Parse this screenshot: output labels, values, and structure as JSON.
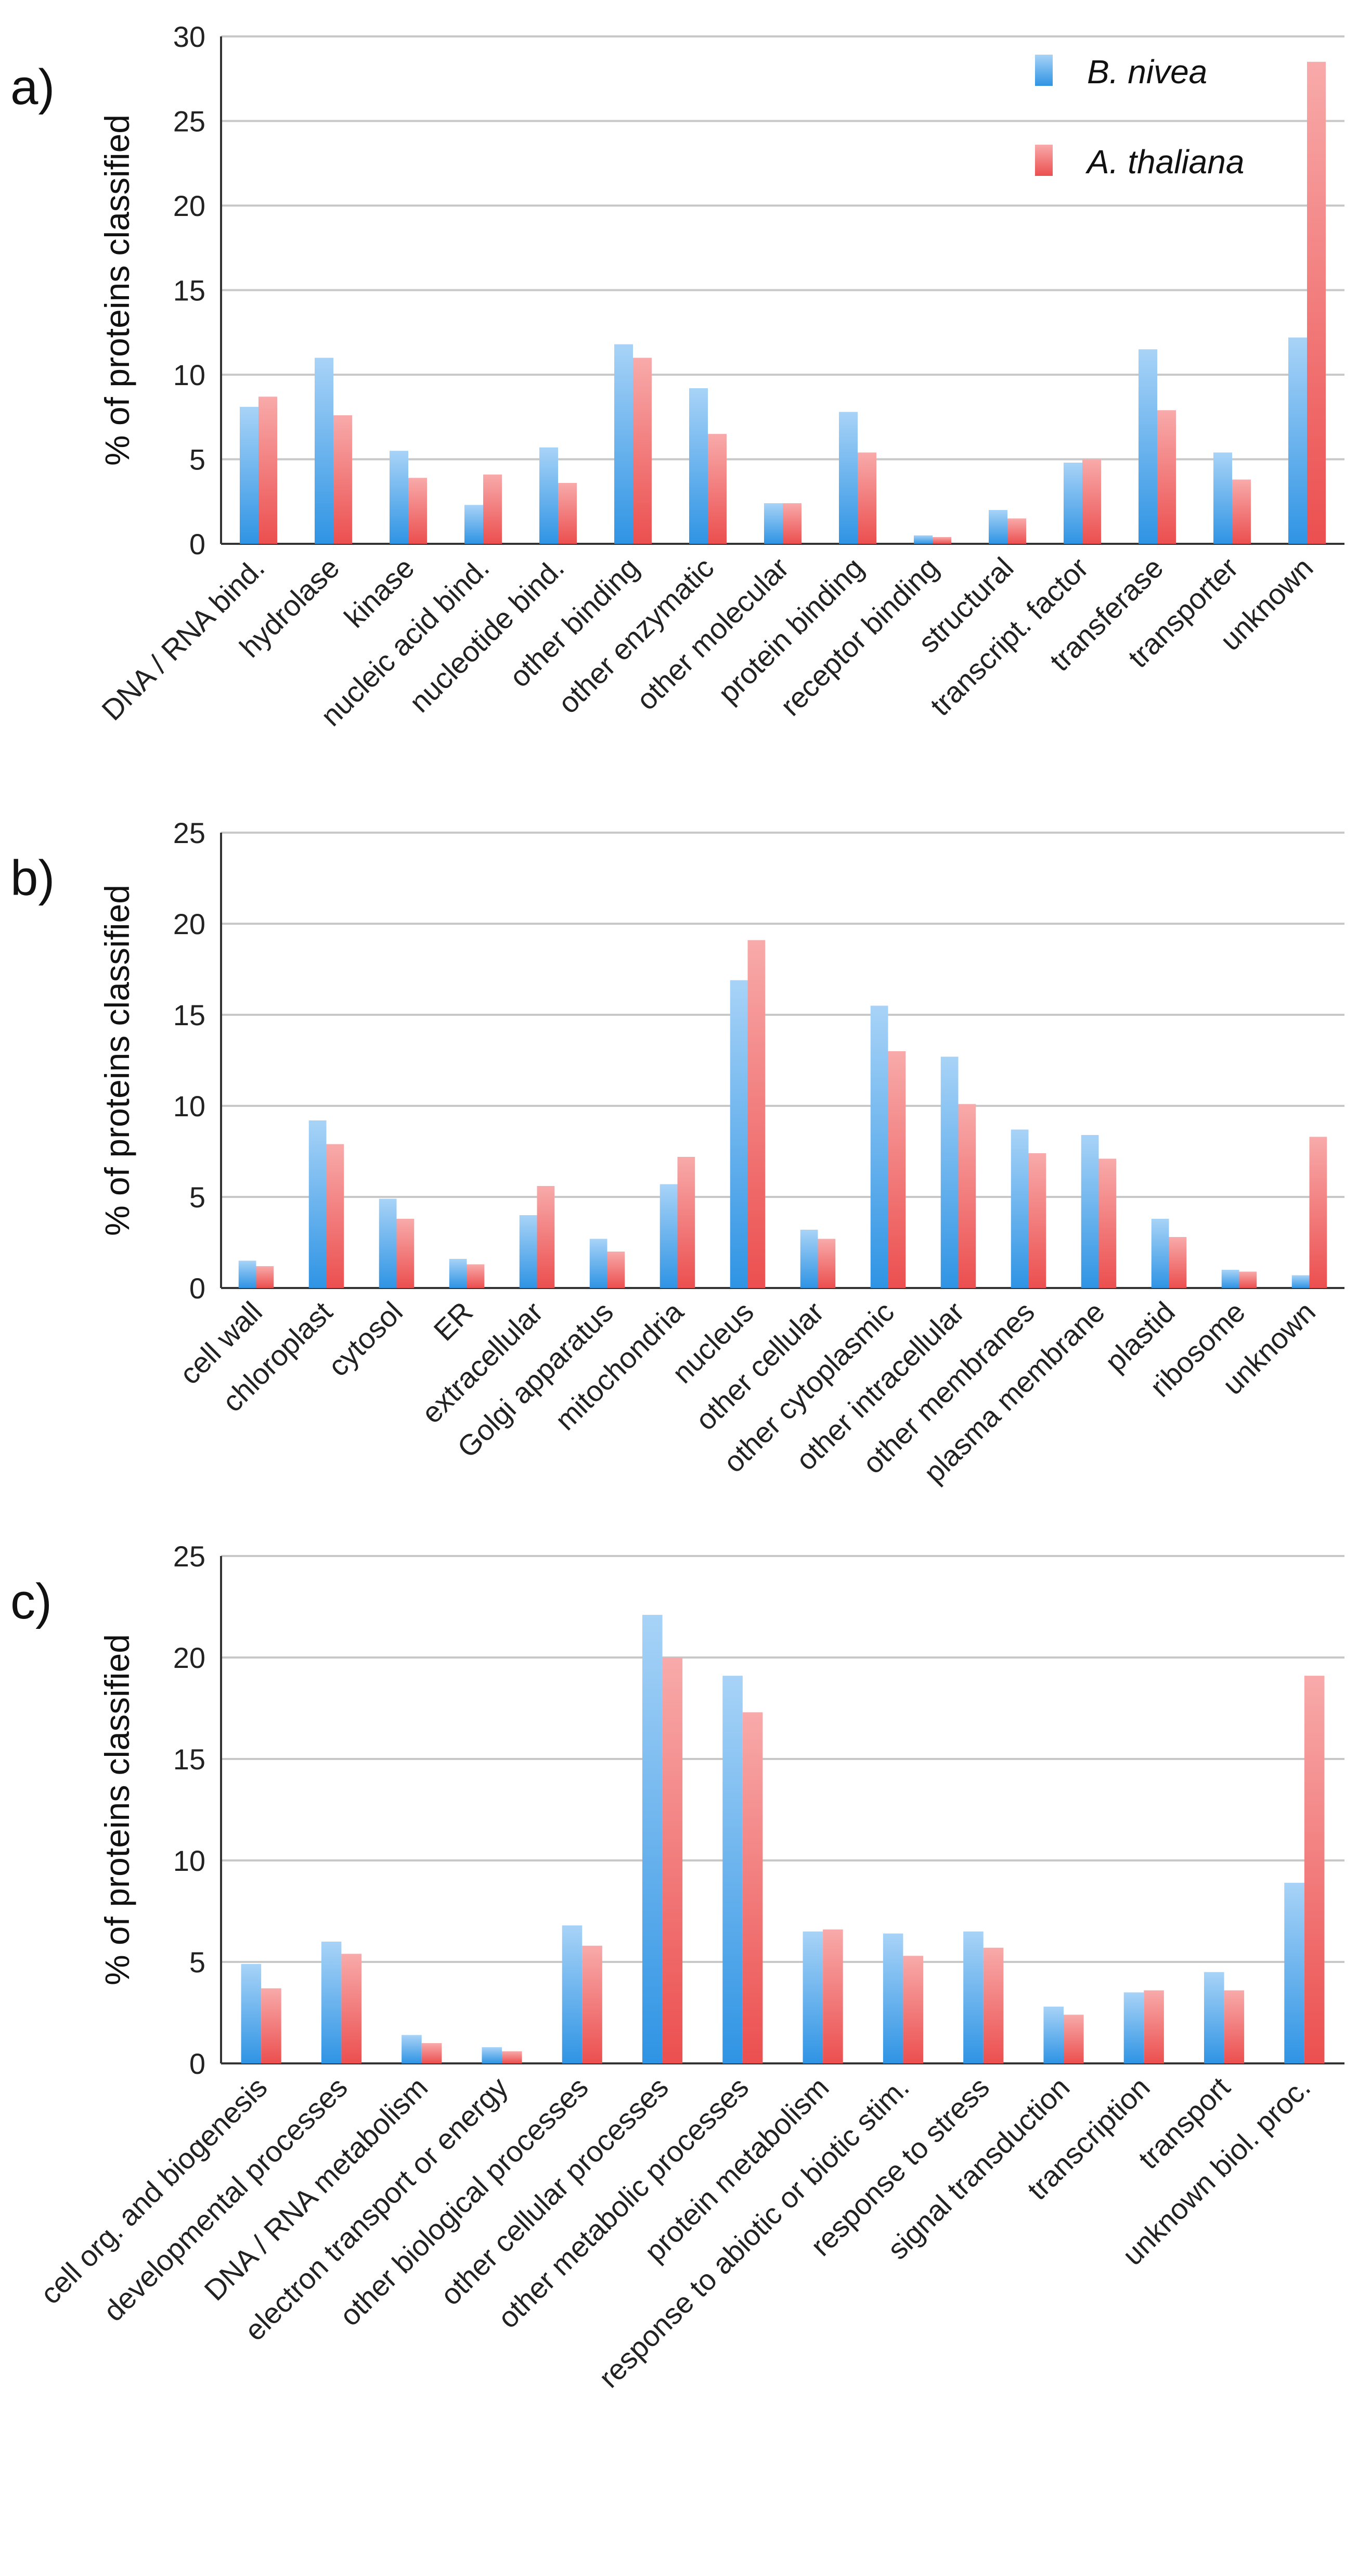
{
  "colors": {
    "b_nivea": "#3d9fe8",
    "a_thaliana": "#ef5b5b",
    "grid": "#c8c8c8",
    "axis": "#333333"
  },
  "legend": {
    "series_a": "B. nivea",
    "series_b": "A. thaliana"
  },
  "chart_data": [
    {
      "type": "bar",
      "panel_label": "a)",
      "ylabel": "% of proteins classified",
      "ylim": [
        0,
        30
      ],
      "yticks": [
        "0",
        "5",
        "10",
        "15",
        "20",
        "25",
        "30"
      ],
      "categories": [
        "DNA / RNA bind.",
        "hydrolase",
        "kinase",
        "nucleic acid bind.",
        "nucleotide bind.",
        "other binding",
        "other enzymatic",
        "other molecular",
        "protein binding",
        "receptor binding",
        "structural",
        "transcript. factor",
        "transferase",
        "transporter",
        "unknown"
      ],
      "series": [
        {
          "name": "B. nivea",
          "values": [
            8.1,
            11.0,
            5.5,
            2.3,
            5.7,
            11.8,
            9.2,
            2.4,
            7.8,
            0.5,
            2.0,
            4.8,
            11.5,
            5.4,
            12.2
          ]
        },
        {
          "name": "A. thaliana",
          "values": [
            8.7,
            7.6,
            3.9,
            4.1,
            3.6,
            11.0,
            6.5,
            2.4,
            5.4,
            0.4,
            1.5,
            5.0,
            7.9,
            3.8,
            28.5
          ]
        }
      ]
    },
    {
      "type": "bar",
      "panel_label": "b)",
      "ylabel": "% of proteins classified",
      "ylim": [
        0,
        25
      ],
      "yticks": [
        "0",
        "5",
        "10",
        "15",
        "20",
        "25"
      ],
      "categories": [
        "cell wall",
        "chloroplast",
        "cytosol",
        "ER",
        "extracellular",
        "Golgi apparatus",
        "mitochondria",
        "nucleus",
        "other cellular",
        "other cytoplasmic",
        "other intracellular",
        "other membranes",
        "plasma membrane",
        "plastid",
        "ribosome",
        "unknown"
      ],
      "series": [
        {
          "name": "B. nivea",
          "values": [
            1.5,
            9.2,
            4.9,
            1.6,
            4.0,
            2.7,
            5.7,
            16.9,
            3.2,
            15.5,
            12.7,
            8.7,
            8.4,
            3.8,
            1.0,
            0.7
          ]
        },
        {
          "name": "A. thaliana",
          "values": [
            1.2,
            7.9,
            3.8,
            1.3,
            5.6,
            2.0,
            7.2,
            19.1,
            2.7,
            13.0,
            10.1,
            7.4,
            7.1,
            2.8,
            0.9,
            8.3
          ]
        }
      ]
    },
    {
      "type": "bar",
      "panel_label": "c)",
      "ylabel": "% of proteins classified",
      "ylim": [
        0,
        25
      ],
      "yticks": [
        "0",
        "5",
        "10",
        "15",
        "20",
        "25"
      ],
      "categories": [
        "cell org. and biogenesis",
        "developmental processes",
        "DNA / RNA metabolism",
        "electron transport or energy",
        "other biological processes",
        "other cellular processes",
        "other metabolic processes",
        "protein metabolism",
        "response to abiotic or biotic stim.",
        "response to stress",
        "signal transduction",
        "transcription",
        "transport",
        "unknown biol. proc."
      ],
      "series": [
        {
          "name": "B. nivea",
          "values": [
            4.9,
            6.0,
            1.4,
            0.8,
            6.8,
            22.1,
            19.1,
            6.5,
            6.4,
            6.5,
            2.8,
            3.5,
            4.5,
            8.9
          ]
        },
        {
          "name": "A. thaliana",
          "values": [
            3.7,
            5.4,
            1.0,
            0.6,
            5.8,
            20.0,
            17.3,
            6.6,
            5.3,
            5.7,
            2.4,
            3.6,
            3.6,
            19.1
          ]
        }
      ]
    }
  ]
}
